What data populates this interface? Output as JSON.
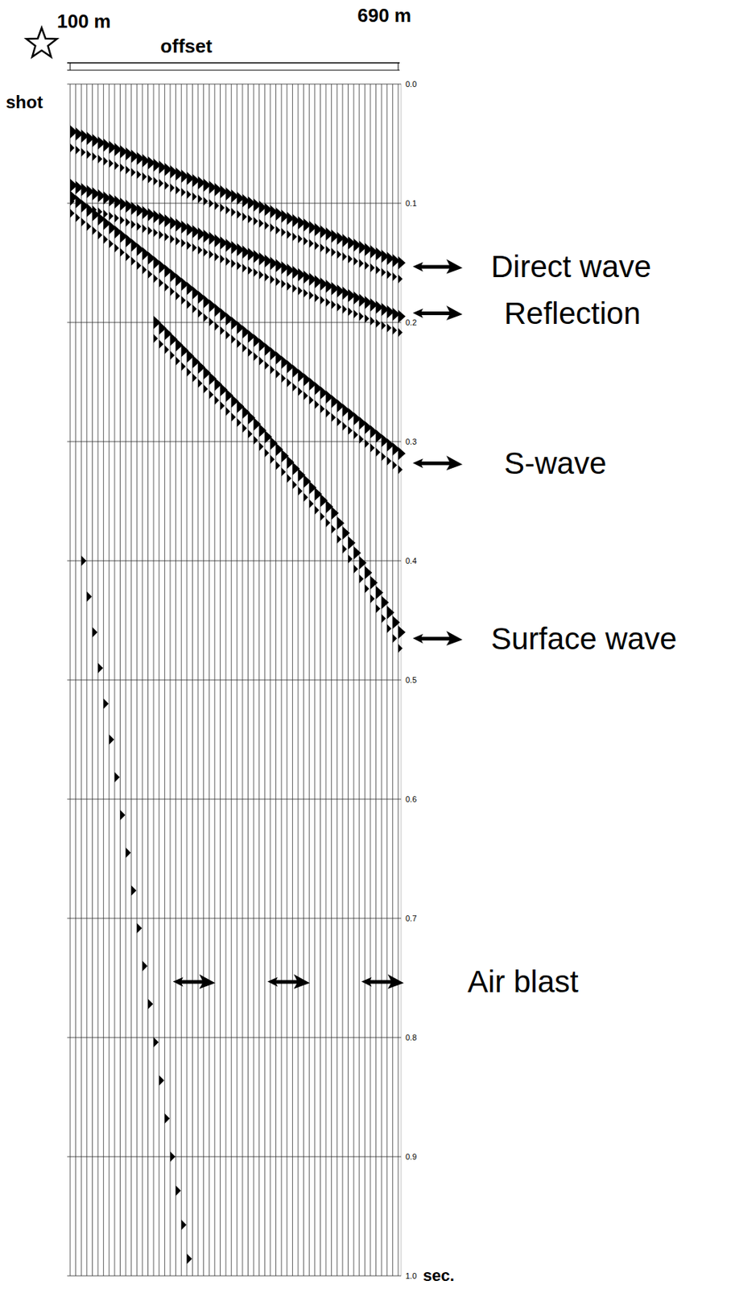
{
  "chart_data": {
    "type": "seismic_wiggle",
    "xlabel": "offset",
    "source_label": "shot",
    "xlim": [
      100,
      690
    ],
    "xticks": [
      {
        "value": 100,
        "label": "100 m"
      },
      {
        "value": 690,
        "label": "690 m"
      }
    ],
    "ylim": [
      0,
      1
    ],
    "yticks": [
      {
        "value": 0,
        "label": "0.0"
      },
      0.1,
      0.2,
      0.3,
      0.4,
      0.5,
      0.6,
      0.7,
      0.8,
      0.9,
      {
        "value": 1,
        "label": "1.0"
      }
    ],
    "ylabel": "sec.",
    "grid": true,
    "traces": [
      100,
      110,
      120,
      130,
      140,
      150,
      160,
      170,
      180,
      190,
      200,
      210,
      220,
      230,
      240,
      250,
      260,
      270,
      280,
      290,
      300,
      310,
      320,
      330,
      340,
      350,
      360,
      370,
      380,
      390,
      400,
      410,
      420,
      430,
      440,
      450,
      460,
      470,
      480,
      490,
      500,
      510,
      520,
      530,
      540,
      550,
      560,
      570,
      580,
      590,
      600,
      610,
      620,
      630,
      640,
      650,
      660,
      670,
      680,
      690
    ],
    "events": [
      {
        "name": "Direct wave",
        "offsets": [
          100,
          690
        ],
        "times": [
          0.04,
          0.15
        ],
        "label_time": 0.153
      },
      {
        "name": "Reflection",
        "offsets": [
          100,
          300,
          500,
          690
        ],
        "times": [
          0.085,
          0.12,
          0.158,
          0.195
        ],
        "label_time": 0.192
      },
      {
        "name": "S-wave",
        "offsets": [
          100,
          690
        ],
        "times": [
          0.095,
          0.31
        ],
        "label_time": 0.318
      },
      {
        "name": "Surface wave",
        "offsets": [
          250,
          420,
          570,
          690
        ],
        "times": [
          0.2,
          0.28,
          0.36,
          0.46
        ],
        "label_time": 0.465
      },
      {
        "name": "Air blast",
        "offsets": [
          120,
          170,
          230,
          280,
          315
        ],
        "times": [
          0.4,
          0.55,
          0.74,
          0.9,
          1.0
        ],
        "label_time": 0.753,
        "arrow_offsets": [
          277,
          447,
          616
        ]
      }
    ]
  }
}
